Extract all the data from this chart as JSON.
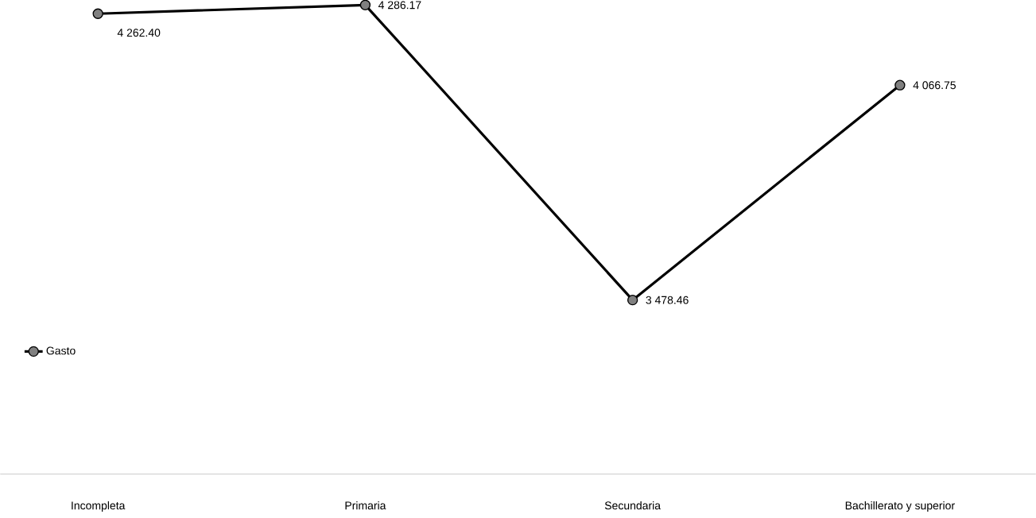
{
  "chart_data": {
    "type": "line",
    "categories": [
      "Incompleta",
      "Primaria",
      "Secundaria",
      "Bachillerato y superior"
    ],
    "series": [
      {
        "name": "Gasto",
        "color": "#000000",
        "values": [
          4262.4,
          4286.17,
          3478.46,
          4066.75
        ],
        "value_labels": [
          "4 262.40",
          "4 286.17",
          "3 478.46",
          "4 066.75"
        ]
      }
    ],
    "marker": "circle",
    "line_style": "solid",
    "legend": "left"
  }
}
